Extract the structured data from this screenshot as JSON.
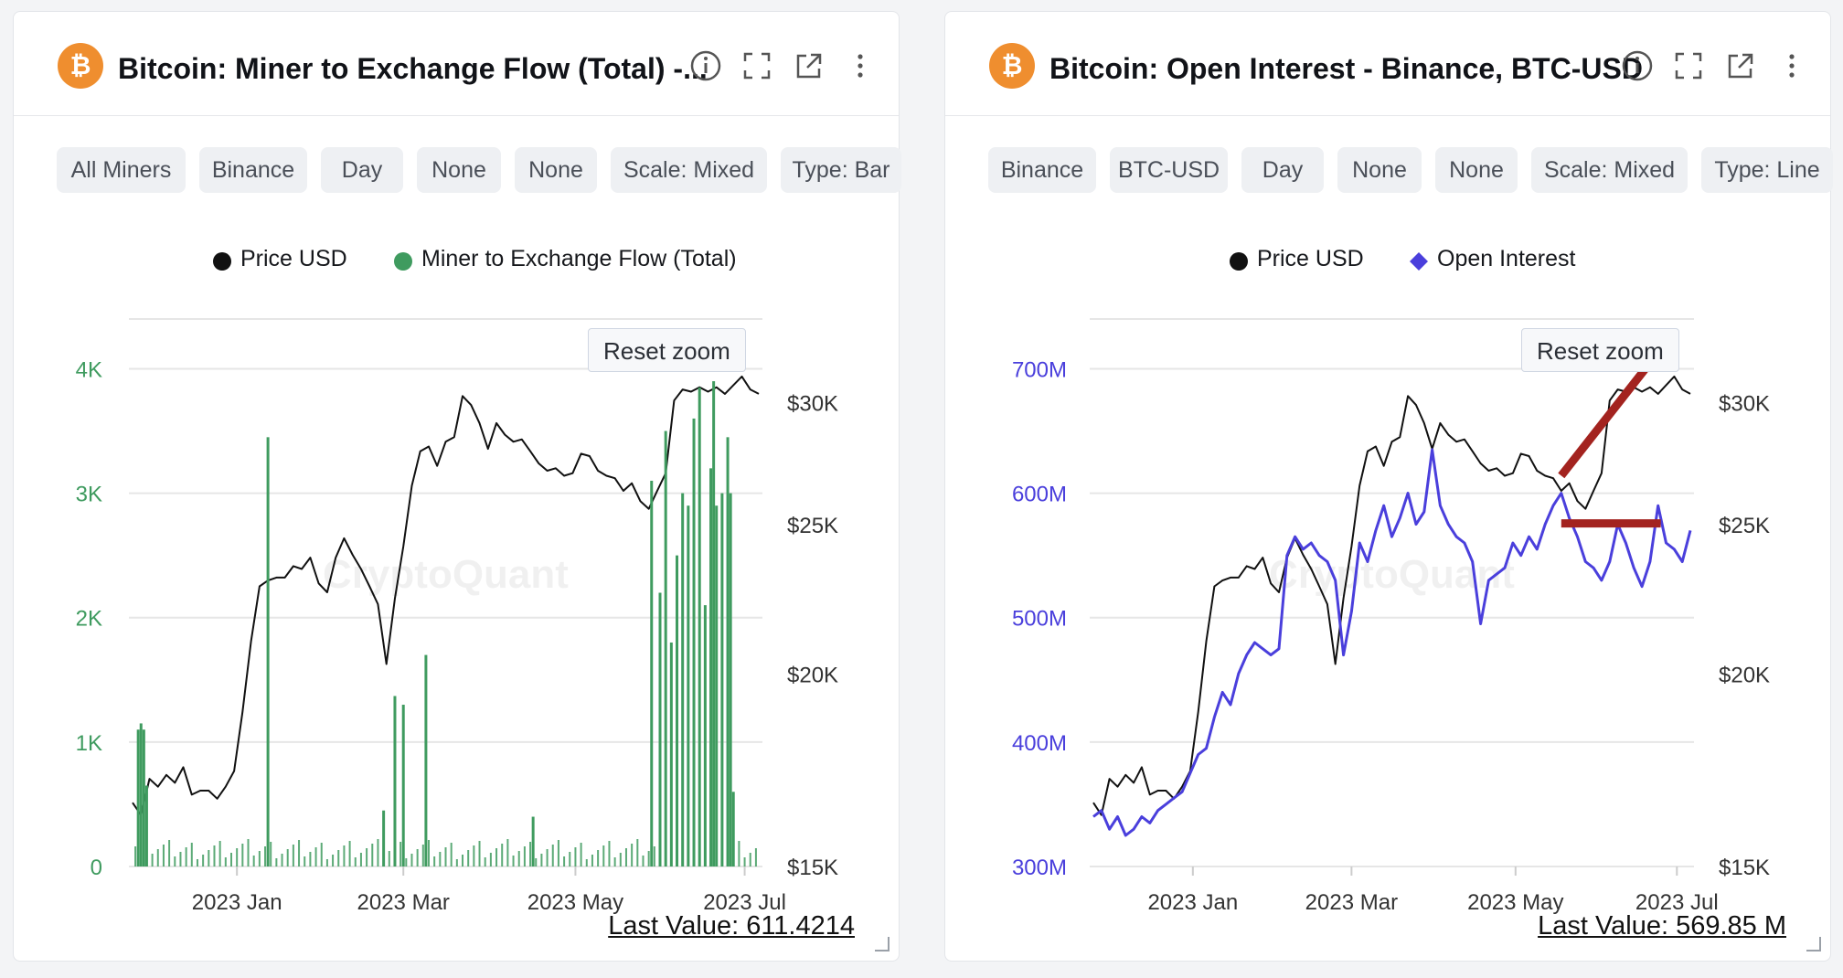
{
  "panels": [
    {
      "title": "Bitcoin: Miner to Exchange Flow (Total) -...",
      "chips": [
        "All Miners",
        "Binance",
        "Day",
        "None",
        "None",
        "Scale: Mixed",
        "Type: Bar"
      ],
      "legend": [
        {
          "label": "Price USD",
          "color": "#111111",
          "marker": "circle"
        },
        {
          "label": "Miner to Exchange Flow (Total)",
          "color": "#3f9b5f",
          "marker": "circle"
        }
      ],
      "reset_zoom": "Reset zoom",
      "watermark": "CryptoQuant",
      "last_value": "Last Value: 611.4214"
    },
    {
      "title": "Bitcoin: Open Interest - Binance, BTC-USD",
      "chips": [
        "Binance",
        "BTC-USD",
        "Day",
        "None",
        "None",
        "Scale: Mixed",
        "Type: Line"
      ],
      "legend": [
        {
          "label": "Price USD",
          "color": "#111111",
          "marker": "circle"
        },
        {
          "label": "Open Interest",
          "color": "#4a3fdc",
          "marker": "diamond"
        }
      ],
      "reset_zoom": "Reset zoom",
      "watermark": "CryptoQuant",
      "last_value": "Last Value: 569.85 M"
    }
  ],
  "chart_data": [
    {
      "type": "bar",
      "title": "Bitcoin: Miner to Exchange Flow (Total) -...",
      "x_range": [
        "2022-11-25",
        "2023-07-07"
      ],
      "x_ticks": [
        "2023 Jan",
        "2023 Mar",
        "2023 May",
        "2023 Jul"
      ],
      "left_axis": {
        "ticks": [
          "0",
          "1K",
          "2K",
          "3K",
          "4K"
        ],
        "range": [
          0,
          4400
        ],
        "color": "#3f9b5f"
      },
      "right_axis": {
        "ticks": [
          "$15K",
          "$20K",
          "$25K",
          "$30K"
        ],
        "scale": "log",
        "range": [
          15000,
          34000
        ],
        "color": "#333333"
      },
      "series": [
        {
          "name": "Price USD",
          "type": "line",
          "axis": "right",
          "color": "#111111",
          "x": [
            0,
            3,
            6,
            9,
            12,
            15,
            18,
            21,
            24,
            27,
            30,
            33,
            36,
            39,
            42,
            45,
            48,
            51,
            54,
            57,
            60,
            63,
            66,
            69,
            72,
            75,
            78,
            81,
            84,
            87,
            90,
            93,
            96,
            99,
            102,
            105,
            108,
            111,
            114,
            117,
            120,
            123,
            126,
            129,
            132,
            135,
            138,
            141,
            144,
            147,
            150,
            153,
            156,
            159,
            162,
            165,
            168,
            171,
            174,
            177,
            180,
            183,
            186,
            189,
            192,
            195,
            198,
            201,
            204,
            207,
            210,
            213,
            216,
            219,
            222
          ],
          "values": [
            16500,
            16200,
            17100,
            16900,
            17200,
            17000,
            17400,
            16700,
            16800,
            16800,
            16600,
            16900,
            17300,
            18900,
            21000,
            22800,
            23000,
            23100,
            23100,
            23500,
            23400,
            23800,
            22900,
            22600,
            23800,
            24500,
            23900,
            23400,
            22800,
            22200,
            20300,
            22400,
            24200,
            26500,
            27900,
            28100,
            27300,
            28300,
            28500,
            30300,
            29900,
            29100,
            28000,
            29100,
            28600,
            28300,
            28400,
            27900,
            27400,
            27100,
            27200,
            26900,
            27000,
            27800,
            27700,
            27100,
            26900,
            26800,
            26300,
            26600,
            25900,
            25600,
            26300,
            27000,
            30100,
            30600,
            30500,
            30700,
            30500,
            30700,
            30400,
            30800,
            31200,
            30600,
            30400
          ]
        },
        {
          "name": "Miner to Exchange Flow (Total)",
          "type": "bar",
          "axis": "left",
          "color": "#3f9b5f",
          "x": [
            2,
            3,
            4,
            5,
            48,
            89,
            93,
            96,
            104,
            142,
            184,
            187,
            189,
            191,
            193,
            195,
            197,
            199,
            201,
            203,
            205,
            206,
            207,
            209,
            211,
            212,
            213
          ],
          "values": [
            1100,
            1150,
            1100,
            650,
            3450,
            450,
            1370,
            1300,
            1700,
            400,
            3100,
            2200,
            3500,
            1800,
            2500,
            3000,
            2900,
            3600,
            3850,
            2100,
            3200,
            3900,
            2900,
            3000,
            3450,
            3000,
            600
          ]
        }
      ]
    },
    {
      "type": "line",
      "title": "Bitcoin: Open Interest - Binance, BTC-USD",
      "x_range": [
        "2022-11-25",
        "2023-07-07"
      ],
      "x_ticks": [
        "2023 Jan",
        "2023 Mar",
        "2023 May",
        "2023 Jul"
      ],
      "left_axis": {
        "ticks": [
          "300M",
          "400M",
          "500M",
          "600M",
          "700M"
        ],
        "range": [
          300,
          740
        ],
        "color": "#4a3fdc"
      },
      "right_axis": {
        "ticks": [
          "$15K",
          "$20K",
          "$25K",
          "$30K"
        ],
        "scale": "log",
        "range": [
          15000,
          34000
        ],
        "color": "#333333"
      },
      "series": [
        {
          "name": "Price USD",
          "type": "line",
          "axis": "right",
          "color": "#111111",
          "x": [
            0,
            3,
            6,
            9,
            12,
            15,
            18,
            21,
            24,
            27,
            30,
            33,
            36,
            39,
            42,
            45,
            48,
            51,
            54,
            57,
            60,
            63,
            66,
            69,
            72,
            75,
            78,
            81,
            84,
            87,
            90,
            93,
            96,
            99,
            102,
            105,
            108,
            111,
            114,
            117,
            120,
            123,
            126,
            129,
            132,
            135,
            138,
            141,
            144,
            147,
            150,
            153,
            156,
            159,
            162,
            165,
            168,
            171,
            174,
            177,
            180,
            183,
            186,
            189,
            192,
            195,
            198,
            201,
            204,
            207,
            210,
            213,
            216,
            219,
            222
          ],
          "values": [
            16500,
            16200,
            17100,
            16900,
            17200,
            17000,
            17400,
            16700,
            16800,
            16800,
            16600,
            16900,
            17300,
            18900,
            21000,
            22800,
            23000,
            23100,
            23100,
            23500,
            23400,
            23800,
            22900,
            22600,
            23800,
            24500,
            23900,
            23400,
            22800,
            22200,
            20300,
            22400,
            24200,
            26500,
            27900,
            28100,
            27300,
            28300,
            28500,
            30300,
            29900,
            29100,
            28000,
            29100,
            28600,
            28300,
            28400,
            27900,
            27400,
            27100,
            27200,
            26900,
            27000,
            27800,
            27700,
            27100,
            26900,
            26800,
            26300,
            26600,
            25900,
            25600,
            26300,
            27000,
            30100,
            30600,
            30500,
            30700,
            30500,
            30700,
            30400,
            30800,
            31200,
            30600,
            30400
          ]
        },
        {
          "name": "Open Interest",
          "type": "line",
          "axis": "left",
          "color": "#4a3fdc",
          "x": [
            0,
            3,
            6,
            9,
            12,
            15,
            18,
            21,
            24,
            27,
            30,
            33,
            36,
            39,
            42,
            45,
            48,
            51,
            54,
            57,
            60,
            63,
            66,
            69,
            72,
            75,
            78,
            81,
            84,
            87,
            90,
            93,
            96,
            99,
            102,
            105,
            108,
            111,
            114,
            117,
            120,
            123,
            126,
            129,
            132,
            135,
            138,
            141,
            144,
            147,
            150,
            153,
            156,
            159,
            162,
            165,
            168,
            171,
            174,
            177,
            180,
            183,
            186,
            189,
            192,
            195,
            198,
            201,
            204,
            207,
            210,
            213,
            216,
            219,
            222
          ],
          "values": [
            340,
            345,
            330,
            340,
            325,
            330,
            340,
            335,
            345,
            350,
            355,
            360,
            375,
            390,
            395,
            420,
            440,
            430,
            455,
            470,
            480,
            475,
            470,
            475,
            550,
            565,
            555,
            560,
            550,
            545,
            530,
            470,
            505,
            560,
            545,
            570,
            590,
            565,
            580,
            600,
            575,
            585,
            635,
            590,
            575,
            565,
            560,
            545,
            495,
            530,
            535,
            540,
            560,
            550,
            565,
            555,
            575,
            590,
            600,
            580,
            565,
            545,
            540,
            530,
            545,
            575,
            560,
            540,
            525,
            545,
            590,
            560,
            555,
            545,
            570
          ]
        }
      ],
      "annotations": [
        {
          "type": "trend-line",
          "color": "#a3231f",
          "from": {
            "x": 174,
            "y_price": 26900
          },
          "to": {
            "x": 211,
            "y_price": 32500
          }
        },
        {
          "type": "horizontal-line",
          "color": "#a3231f",
          "from": {
            "x": 174,
            "y_price": 25050
          },
          "to": {
            "x": 211,
            "y_price": 25050
          }
        }
      ]
    }
  ]
}
